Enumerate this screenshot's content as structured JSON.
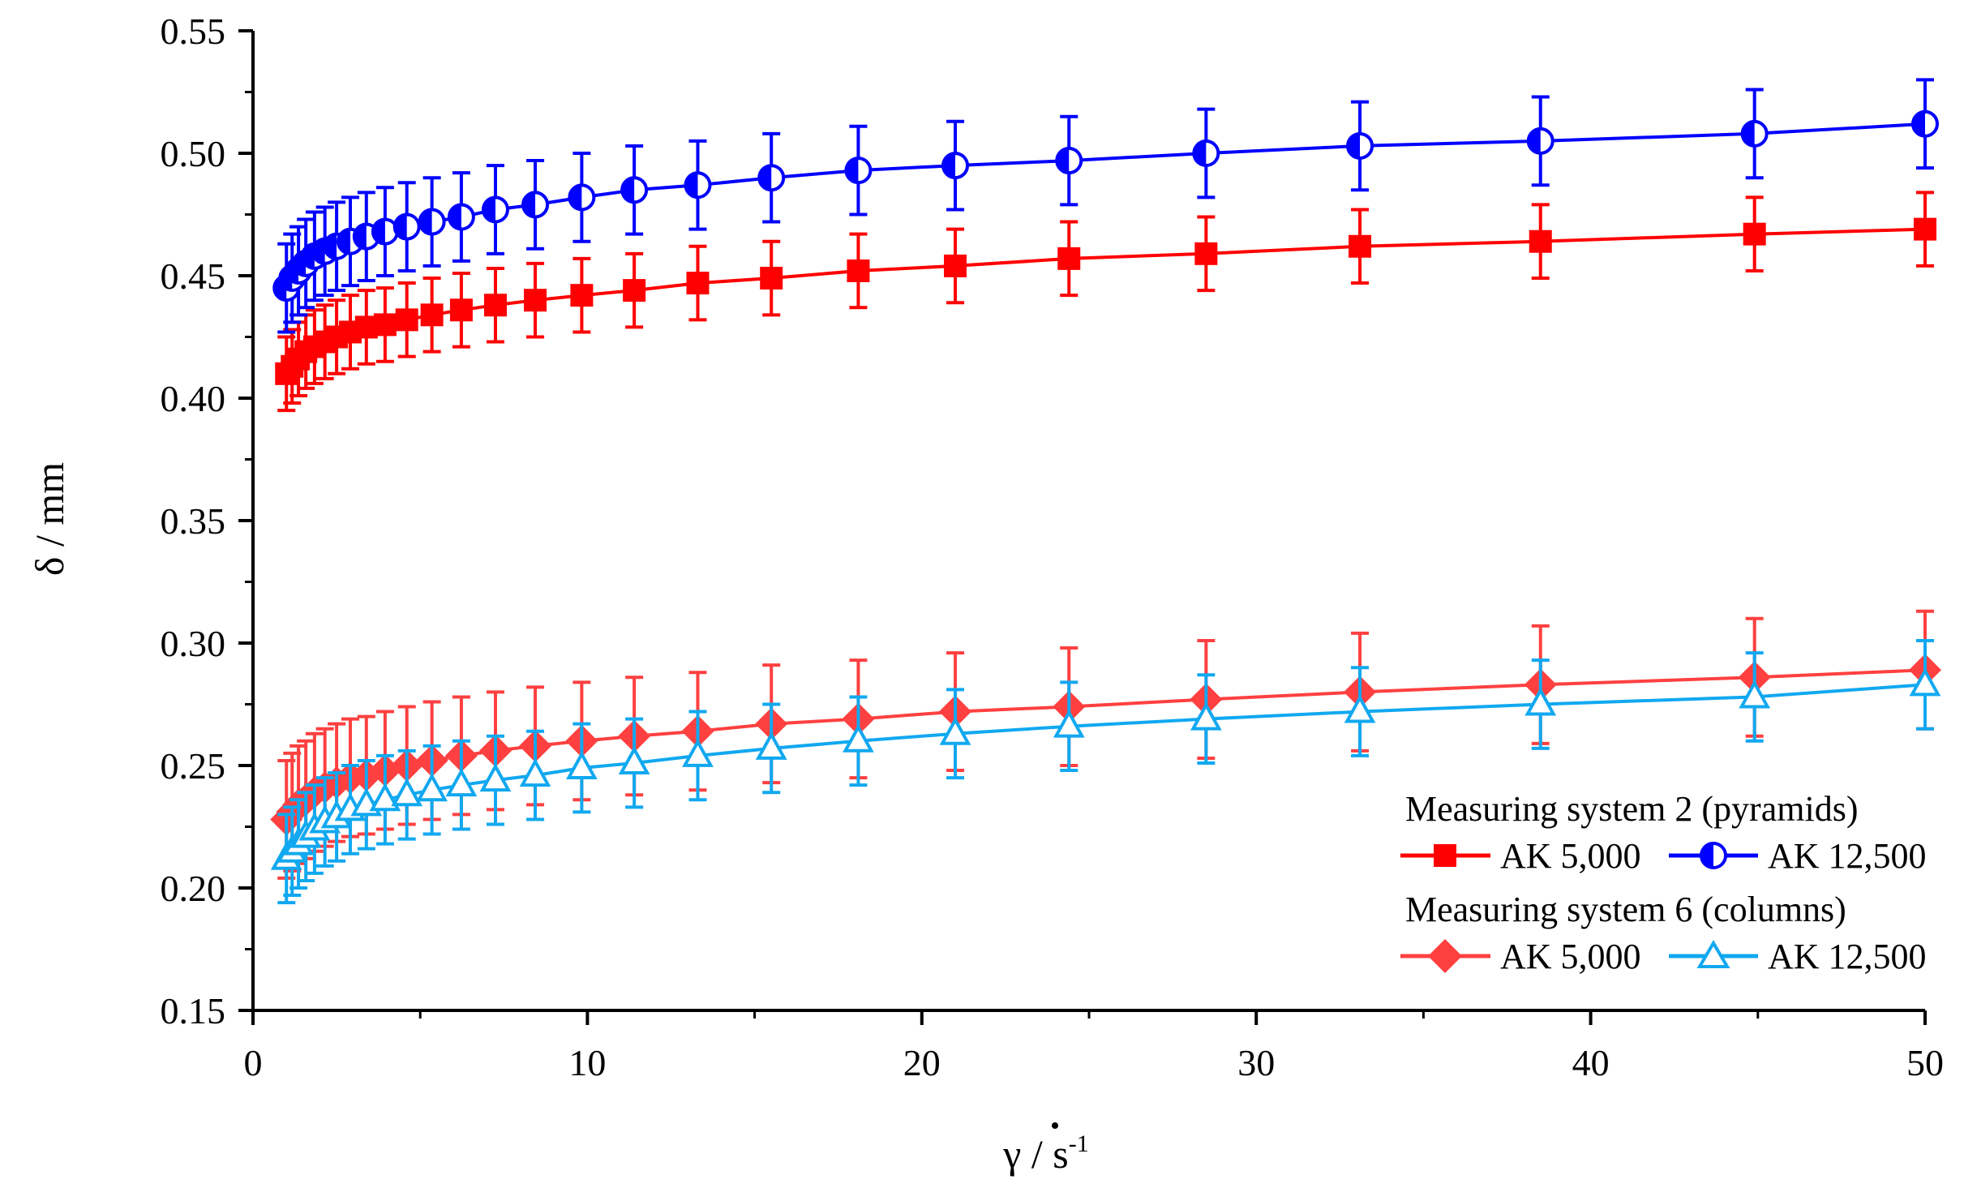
{
  "chart_data": {
    "type": "line",
    "xlabel_symbol": "γ",
    "xlabel_unit": " / s",
    "xlabel_exponent": "-1",
    "ylabel": "δ / mm",
    "xlim": [
      0,
      50
    ],
    "ylim": [
      0.15,
      0.55
    ],
    "x_ticks": [
      0,
      10,
      20,
      30,
      40,
      50
    ],
    "y_ticks": [
      0.15,
      0.2,
      0.25,
      0.3,
      0.35,
      0.4,
      0.45,
      0.5,
      0.55
    ],
    "y_tick_labels": [
      "0.15",
      "0.20",
      "0.25",
      "0.30",
      "0.35",
      "0.40",
      "0.45",
      "0.50",
      "0.55"
    ],
    "x_tick_labels": [
      "0",
      "10",
      "20",
      "30",
      "40",
      "50"
    ],
    "grid": false,
    "legend_position": "bottom-right",
    "legend_groups": [
      {
        "title": "Measuring system 2 (pyramids)",
        "series": [
          0,
          1
        ]
      },
      {
        "title": "Measuring system 6 (columns)",
        "series": [
          2,
          3
        ]
      }
    ],
    "x": [
      1,
      1.17,
      1.36,
      1.58,
      1.84,
      2.15,
      2.5,
      2.91,
      3.39,
      3.95,
      4.6,
      5.35,
      6.23,
      7.25,
      8.44,
      9.83,
      11.4,
      13.3,
      15.5,
      18.1,
      21.0,
      24.4,
      28.5,
      33.1,
      38.5,
      44.9,
      50
    ],
    "series": [
      {
        "name": "AK 5,000",
        "color": "#ff0000",
        "marker": "square-filled",
        "values": [
          0.41,
          0.413,
          0.416,
          0.419,
          0.421,
          0.423,
          0.425,
          0.427,
          0.429,
          0.43,
          0.432,
          0.434,
          0.436,
          0.438,
          0.44,
          0.442,
          0.444,
          0.447,
          0.449,
          0.452,
          0.454,
          0.457,
          0.459,
          0.462,
          0.464,
          0.467,
          0.469
        ],
        "error": 0.015
      },
      {
        "name": "AK 12,500",
        "color": "#0000ff",
        "marker": "circle-half",
        "values": [
          0.445,
          0.449,
          0.452,
          0.455,
          0.458,
          0.46,
          0.462,
          0.464,
          0.466,
          0.468,
          0.47,
          0.472,
          0.474,
          0.477,
          0.479,
          0.482,
          0.485,
          0.487,
          0.49,
          0.493,
          0.495,
          0.497,
          0.5,
          0.503,
          0.505,
          0.508,
          0.512
        ],
        "error": 0.018
      },
      {
        "name": "AK 5,000",
        "color": "#ff4040",
        "marker": "diamond-filled",
        "values": [
          0.228,
          0.231,
          0.234,
          0.236,
          0.239,
          0.241,
          0.243,
          0.245,
          0.246,
          0.248,
          0.25,
          0.252,
          0.254,
          0.256,
          0.258,
          0.26,
          0.262,
          0.264,
          0.267,
          0.269,
          0.272,
          0.274,
          0.277,
          0.28,
          0.283,
          0.286,
          0.289
        ],
        "error": 0.024
      },
      {
        "name": "AK 12,500",
        "color": "#11a8f0",
        "marker": "triangle-open",
        "values": [
          0.212,
          0.215,
          0.218,
          0.221,
          0.224,
          0.227,
          0.229,
          0.232,
          0.234,
          0.236,
          0.238,
          0.24,
          0.242,
          0.244,
          0.246,
          0.249,
          0.251,
          0.254,
          0.257,
          0.26,
          0.263,
          0.266,
          0.269,
          0.272,
          0.275,
          0.278,
          0.283
        ],
        "error": 0.018
      }
    ]
  }
}
